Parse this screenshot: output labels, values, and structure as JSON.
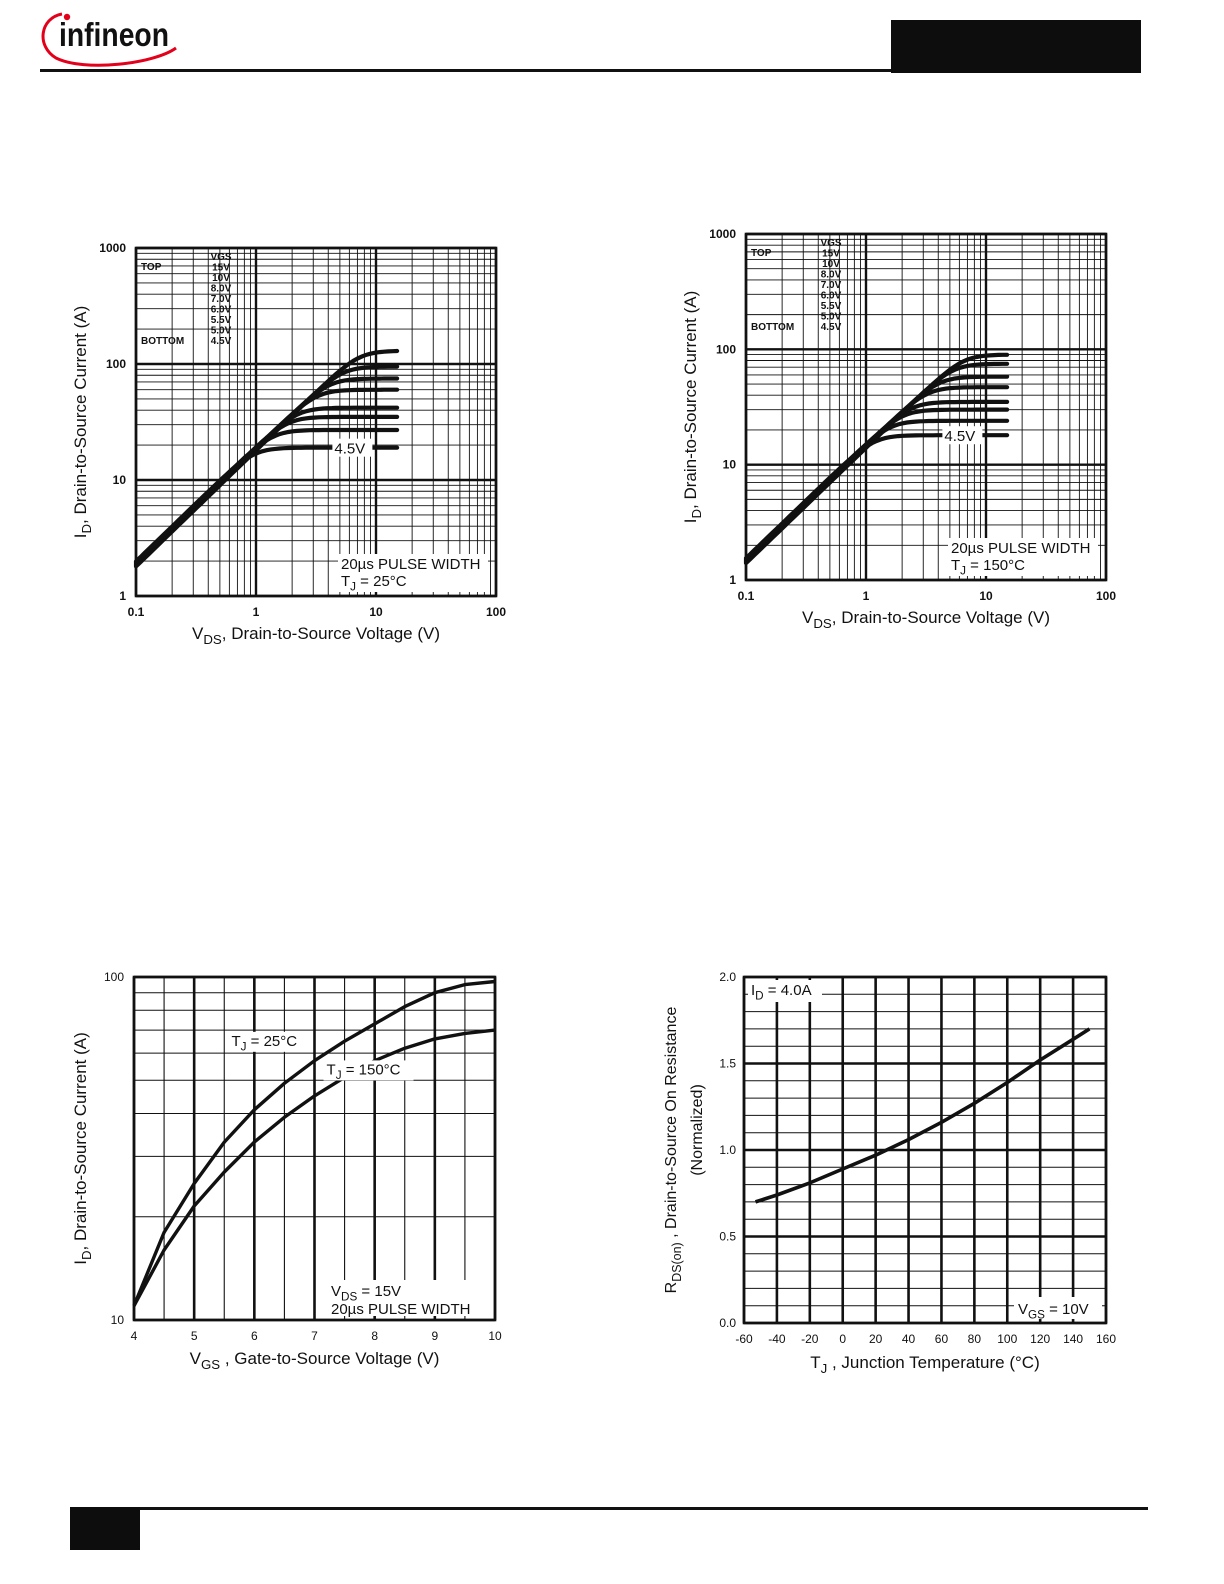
{
  "header": {
    "brand": "infineon",
    "brand_color": "#1a3b8f",
    "swoosh_color": "#e2001a"
  },
  "chart_data": [
    {
      "type": "line",
      "id": "fig1",
      "scale": "log-log",
      "xlim": [
        0.1,
        100
      ],
      "ylim": [
        1,
        1000
      ],
      "x_ticks": [
        "0.1",
        "1",
        "10",
        "100"
      ],
      "y_ticks": [
        "1",
        "10",
        "100",
        "1000"
      ],
      "ylabel_main": "I",
      "ylabel_sub": "D",
      "ylabel_rest": ", Drain-to-Source Current (A)",
      "xlabel_main": "V",
      "xlabel_sub": "DS",
      "xlabel_rest": ", Drain-to-Source Voltage (V)",
      "legend": {
        "header": "VGS",
        "top_label": "TOP",
        "bottom_label": "BOTTOM",
        "entries": [
          "15V",
          "10V",
          "8.0V",
          "7.0V",
          "6.0V",
          "5.5V",
          "5.0V",
          "4.5V"
        ]
      },
      "curve_label": "4.5V",
      "anno_line1": "20µs PULSE WIDTH",
      "anno_t_main": "T",
      "anno_t_sub": "J",
      "anno_t_rest": " = 25°C",
      "series": [
        {
          "name": "15V",
          "sat": 130
        },
        {
          "name": "10V",
          "sat": 95
        },
        {
          "name": "8.0V",
          "sat": 75
        },
        {
          "name": "7.0V",
          "sat": 60
        },
        {
          "name": "6.0V",
          "sat": 42
        },
        {
          "name": "5.5V",
          "sat": 35
        },
        {
          "name": "5.0V",
          "sat": 27
        },
        {
          "name": "4.5V",
          "sat": 19
        }
      ],
      "x_end": 15,
      "start": [
        0.1,
        1.8
      ]
    },
    {
      "type": "line",
      "id": "fig2",
      "scale": "log-log",
      "xlim": [
        0.1,
        100
      ],
      "ylim": [
        1,
        1000
      ],
      "x_ticks": [
        "0.1",
        "1",
        "10",
        "100"
      ],
      "y_ticks": [
        "1",
        "10",
        "100",
        "1000"
      ],
      "ylabel_main": "I",
      "ylabel_sub": "D",
      "ylabel_rest": ", Drain-to-Source Current (A)",
      "xlabel_main": "V",
      "xlabel_sub": "DS",
      "xlabel_rest": ", Drain-to-Source Voltage (V)",
      "legend": {
        "header": "VGS",
        "top_label": "TOP",
        "bottom_label": "BOTTOM",
        "entries": [
          "15V",
          "10V",
          "8.0V",
          "7.0V",
          "6.0V",
          "5.5V",
          "5.0V",
          "4.5V"
        ]
      },
      "curve_label": "4.5V",
      "anno_line1": "20µs PULSE WIDTH",
      "anno_t_main": "T",
      "anno_t_sub": "J",
      "anno_t_rest": " = 150°C",
      "series": [
        {
          "name": "15V",
          "sat": 90
        },
        {
          "name": "10V",
          "sat": 75
        },
        {
          "name": "8.0V",
          "sat": 58
        },
        {
          "name": "7.0V",
          "sat": 47
        },
        {
          "name": "6.0V",
          "sat": 35
        },
        {
          "name": "5.5V",
          "sat": 30
        },
        {
          "name": "5.0V",
          "sat": 24
        },
        {
          "name": "4.5V",
          "sat": 18
        }
      ],
      "x_end": 15,
      "start": [
        0.1,
        1.4
      ]
    },
    {
      "type": "line",
      "id": "fig3",
      "scale": "lin-log",
      "xlim": [
        4,
        10
      ],
      "ylim": [
        10,
        100
      ],
      "x_ticks": [
        "4",
        "5",
        "6",
        "7",
        "8",
        "9",
        "10"
      ],
      "y_ticks": [
        "10",
        "100"
      ],
      "ylabel_main": "I",
      "ylabel_sub": "D",
      "ylabel_rest": ", Drain-to-Source Current (A)",
      "xlabel_main": "V",
      "xlabel_sub": "GS",
      "xlabel_rest": " , Gate-to-Source Voltage (V)",
      "anno_v_main": "V",
      "anno_v_sub": "DS",
      "anno_v_rest": " = 15V",
      "anno_line2": "20µs PULSE WIDTH",
      "series": [
        {
          "label_main": "T",
          "label_sub": "J",
          "label_rest": " = 25°C",
          "x": [
            4,
            4.5,
            5,
            5.5,
            6,
            6.5,
            7,
            7.5,
            8,
            8.5,
            9,
            9.5,
            10
          ],
          "y": [
            11,
            18,
            25,
            33,
            41,
            49,
            57,
            65,
            73,
            82,
            90,
            95,
            97
          ]
        },
        {
          "label_main": "T",
          "label_sub": "J",
          "label_rest": " = 150°C",
          "x": [
            4,
            4.5,
            5,
            5.5,
            6,
            6.5,
            7,
            7.5,
            8,
            8.5,
            9,
            9.5,
            10
          ],
          "y": [
            11,
            16,
            21.5,
            27,
            33,
            39,
            45,
            51,
            57,
            62,
            66,
            68.5,
            70
          ]
        }
      ]
    },
    {
      "type": "line",
      "id": "fig4",
      "scale": "lin-lin",
      "xlim": [
        -60,
        160
      ],
      "ylim": [
        0.0,
        2.0
      ],
      "x_ticks": [
        "-60",
        "-40",
        "-20",
        "0",
        "20",
        "40",
        "60",
        "80",
        "100",
        "120",
        "140",
        "160"
      ],
      "y_ticks": [
        "0.0",
        "0.5",
        "1.0",
        "1.5",
        "2.0"
      ],
      "ylabel_main": "R",
      "ylabel_sub": "DS(on)",
      "ylabel_rest": " ,   Drain-to-Source On Resistance",
      "ylabel_line2": "(Normalized)",
      "xlabel_main": "T",
      "xlabel_sub": "J",
      "xlabel_rest": " , Junction Temperature (°C)",
      "anno_i_main": "I",
      "anno_i_sub": "D",
      "anno_i_rest": " = 4.0A",
      "anno_v_main": "V",
      "anno_v_sub": "GS",
      "anno_v_rest": " = 10V",
      "series": [
        {
          "x": [
            -53,
            -40,
            -20,
            0,
            20,
            40,
            60,
            80,
            100,
            120,
            140,
            150
          ],
          "y": [
            0.7,
            0.74,
            0.81,
            0.89,
            0.97,
            1.06,
            1.16,
            1.27,
            1.39,
            1.52,
            1.64,
            1.7
          ]
        }
      ]
    }
  ]
}
